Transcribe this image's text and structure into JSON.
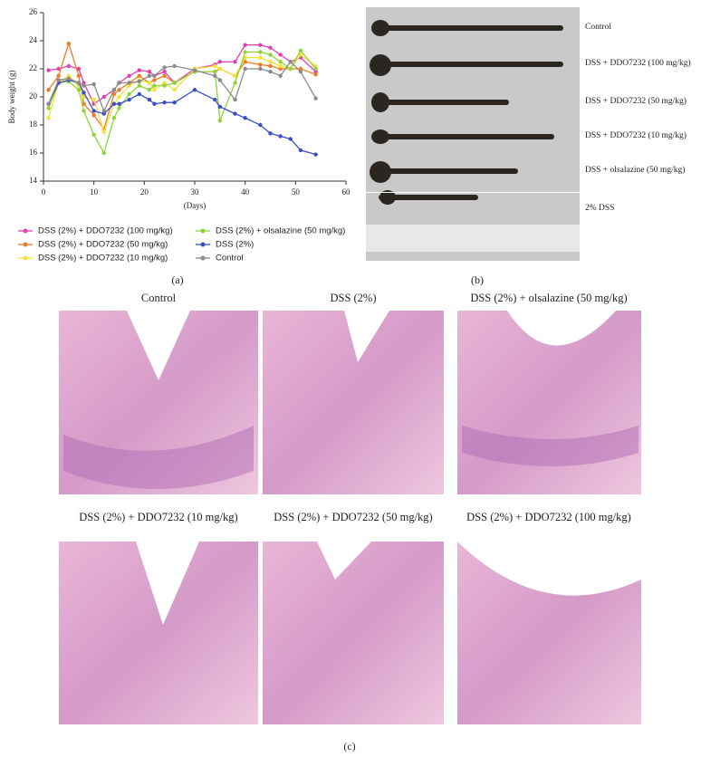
{
  "chart_data": {
    "type": "line",
    "panel_label": "(a)",
    "xlabel": "(Days)",
    "ylabel": "Body weight (g)",
    "x": [
      1,
      3,
      5,
      7,
      8,
      10,
      12,
      14,
      15,
      17,
      19,
      21,
      22,
      24,
      26,
      30,
      34,
      35,
      38,
      40,
      43,
      45,
      47,
      49,
      51,
      54
    ],
    "xlim": [
      0,
      60
    ],
    "xticks": [
      0,
      10,
      20,
      30,
      40,
      50,
      60
    ],
    "ylim": [
      14,
      26
    ],
    "yticks": [
      14,
      16,
      18,
      20,
      22,
      24,
      26
    ],
    "series": [
      {
        "name": "DSS (2%) + DDO7232 (100 mg/kg)",
        "color": "#e23fb4",
        "values": [
          21.9,
          22,
          22.2,
          22,
          21,
          19.5,
          20,
          20.5,
          21,
          21.5,
          21.9,
          21.8,
          21.5,
          21.8,
          21,
          22,
          22.3,
          22.5,
          22.5,
          23.7,
          23.7,
          23.5,
          23,
          22.5,
          22.8,
          21.8
        ]
      },
      {
        "name": "DSS (2%) + DDO7232 (50 mg/kg)",
        "color": "#f07a22",
        "values": [
          20.5,
          21.5,
          23.8,
          21.5,
          19.5,
          18.7,
          17.7,
          20.2,
          20.5,
          21,
          21.5,
          21,
          21.2,
          21.5,
          21,
          21.8,
          21.8,
          22,
          21.5,
          22.5,
          22.3,
          22.2,
          22,
          22,
          22,
          21.6
        ]
      },
      {
        "name": "DSS (2%) + DDO7232 (10 mg/kg)",
        "color": "#f2e23a",
        "values": [
          18.5,
          21,
          21.5,
          20.8,
          20,
          19.8,
          17.5,
          19.5,
          20,
          20.8,
          21.2,
          21,
          20.5,
          21,
          20.5,
          22,
          22.2,
          22,
          21.5,
          22.8,
          22.8,
          22.5,
          22.2,
          22,
          23,
          22.2
        ]
      },
      {
        "name": "DSS (2%) + olsalazine (50 mg/kg)",
        "color": "#8fd43a",
        "values": [
          19.2,
          21,
          21.1,
          20.5,
          19,
          17.3,
          16,
          18.5,
          19.2,
          20.2,
          20.8,
          20.5,
          20.8,
          20.8,
          21,
          21.8,
          21.8,
          18.3,
          21,
          23.2,
          23.2,
          23,
          22.5,
          22,
          23.3,
          22
        ]
      },
      {
        "name": "DSS (2%)",
        "color": "#3a4fc4",
        "values": [
          19.5,
          21,
          21.2,
          21,
          20.3,
          19,
          18.8,
          19.5,
          19.5,
          19.8,
          20.2,
          19.8,
          19.5,
          19.6,
          19.6,
          20.5,
          19.8,
          19.3,
          18.8,
          18.5,
          18,
          17.4,
          17.2,
          17,
          16.2,
          15.9
        ]
      },
      {
        "name": "Control",
        "color": "#8a8a8a",
        "values": [
          19.5,
          21.2,
          21.3,
          21,
          20.8,
          20.9,
          19,
          20.5,
          21,
          21,
          21.1,
          21.5,
          21.5,
          22.1,
          22.2,
          21.9,
          21.5,
          21.2,
          19.8,
          22,
          22,
          21.8,
          21.5,
          22.5,
          21.8,
          19.9
        ]
      }
    ]
  },
  "photo": {
    "panel_label": "(b)",
    "labels": [
      "Control",
      "DSS + DDO7232 (100 mg/kg)",
      "DSS + DDO7232 (50 mg/kg)",
      "DSS + DDO7232 (10 mg/kg)",
      "DSS + olsalazine (50 mg/kg)",
      "2% DSS"
    ]
  },
  "histology": {
    "panel_label": "(c)",
    "titles": [
      "Control",
      "DSS (2%)",
      "DSS (2%) + olsalazine (50 mg/kg)",
      "DSS (2%) + DDO7232 (10 mg/kg)",
      "DSS (2%) + DDO7232 (50 mg/kg)",
      "DSS (2%) + DDO7232 (100 mg/kg)"
    ]
  }
}
